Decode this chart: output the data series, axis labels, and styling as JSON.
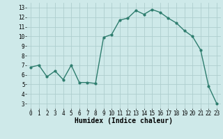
{
  "x": [
    0,
    1,
    2,
    3,
    4,
    5,
    6,
    7,
    8,
    9,
    10,
    11,
    12,
    13,
    14,
    15,
    16,
    17,
    18,
    19,
    20,
    21,
    22,
    23
  ],
  "y": [
    6.8,
    7.0,
    5.8,
    6.4,
    5.5,
    7.0,
    5.2,
    5.2,
    5.1,
    9.9,
    10.2,
    11.7,
    11.9,
    12.7,
    12.3,
    12.8,
    12.5,
    11.9,
    11.4,
    10.6,
    10.0,
    8.6,
    4.8,
    3.0
  ],
  "line_color": "#2e7d6e",
  "marker": "o",
  "marker_size": 2.0,
  "linewidth": 1.0,
  "xlabel": "Humidex (Indice chaleur)",
  "xlim": [
    -0.5,
    23.5
  ],
  "ylim": [
    2.5,
    13.5
  ],
  "yticks": [
    3,
    4,
    5,
    6,
    7,
    8,
    9,
    10,
    11,
    12,
    13
  ],
  "xticks": [
    0,
    1,
    2,
    3,
    4,
    5,
    6,
    7,
    8,
    9,
    10,
    11,
    12,
    13,
    14,
    15,
    16,
    17,
    18,
    19,
    20,
    21,
    22,
    23
  ],
  "bg_color": "#cee9e9",
  "grid_color": "#aecece",
  "tick_fontsize": 5.5,
  "xlabel_fontsize": 7.0
}
